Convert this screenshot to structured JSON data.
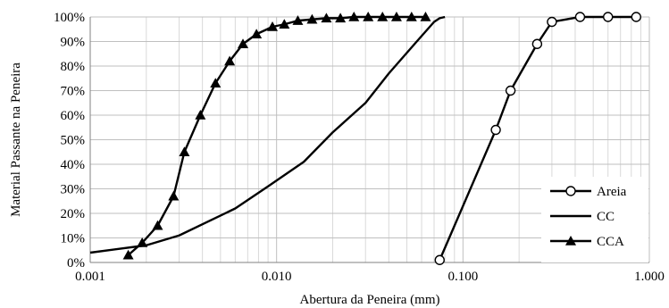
{
  "chart_data": {
    "type": "line",
    "xlabel": "Abertura da Peneira (mm)",
    "ylabel": "Material Passante na Peneira",
    "x_scale": "log",
    "xlim": [
      0.001,
      1.0
    ],
    "ylim": [
      0,
      100
    ],
    "x_ticks": [
      "0.001",
      "0.010",
      "0.100",
      "1.000"
    ],
    "y_ticks": [
      "0%",
      "10%",
      "20%",
      "30%",
      "40%",
      "50%",
      "60%",
      "70%",
      "80%",
      "90%",
      "100%"
    ],
    "grid": true,
    "legend_position": "bottom-right",
    "series": [
      {
        "name": "Areia",
        "marker": "circle",
        "x": [
          0.075,
          0.15,
          0.18,
          0.25,
          0.3,
          0.425,
          0.6,
          0.85
        ],
        "y": [
          1,
          54,
          70,
          89,
          98,
          100,
          100,
          100
        ]
      },
      {
        "name": "CC",
        "marker": "none",
        "x": [
          0.001,
          0.002,
          0.003,
          0.006,
          0.009,
          0.014,
          0.02,
          0.03,
          0.04,
          0.055,
          0.07,
          0.075,
          0.08
        ],
        "y": [
          4,
          7,
          11,
          22,
          31,
          41,
          53,
          65,
          77,
          89,
          98,
          99.5,
          100
        ]
      },
      {
        "name": "CCA",
        "marker": "triangle",
        "x": [
          0.0016,
          0.0019,
          0.0023,
          0.0028,
          0.0032,
          0.0039,
          0.0047,
          0.0056,
          0.0066,
          0.0078,
          0.0095,
          0.011,
          0.013,
          0.0155,
          0.0185,
          0.022,
          0.026,
          0.031,
          0.037,
          0.044,
          0.053,
          0.063
        ],
        "y": [
          3,
          8,
          15,
          27,
          45,
          60,
          73,
          82,
          89,
          93,
          96,
          97,
          98.5,
          99,
          99.5,
          99.5,
          100,
          100,
          100,
          100,
          100,
          100
        ]
      }
    ]
  }
}
